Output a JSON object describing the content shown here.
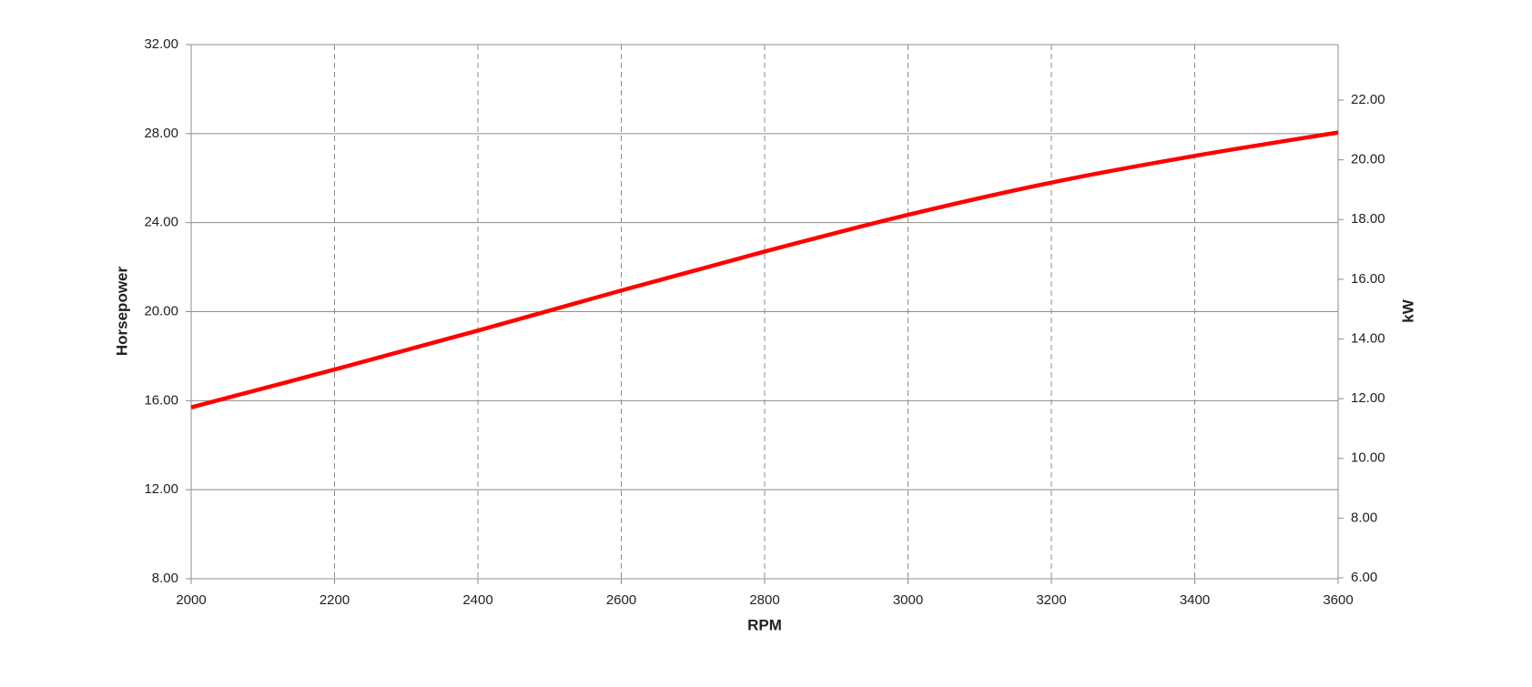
{
  "chart_data": {
    "type": "line",
    "x_label": "RPM",
    "y_label": "Horsepower",
    "y2_label": "kW",
    "x": [
      2000,
      2200,
      2400,
      2600,
      2800,
      3000,
      3200,
      3400,
      3600
    ],
    "series": [
      {
        "name": "Horsepower",
        "color": "#ff0000",
        "values": [
          15.7,
          17.4,
          19.15,
          20.95,
          22.7,
          24.35,
          25.8,
          27.0,
          28.05
        ]
      }
    ],
    "xlim": [
      2000,
      3600
    ],
    "xticks": [
      2000,
      2200,
      2400,
      2600,
      2800,
      3000,
      3200,
      3400,
      3600
    ],
    "ylim": [
      8,
      32
    ],
    "yticks": [
      {
        "value": 8,
        "label": "8.00"
      },
      {
        "value": 12,
        "label": "12.00"
      },
      {
        "value": 16,
        "label": "16.00"
      },
      {
        "value": 20,
        "label": "20.00"
      },
      {
        "value": 24,
        "label": "24.00"
      },
      {
        "value": 28,
        "label": "28.00"
      },
      {
        "value": 32,
        "label": "32.00"
      }
    ],
    "y2lim": [
      5.97,
      23.86
    ],
    "y2ticks": [
      {
        "value": 6,
        "label": "6.00"
      },
      {
        "value": 8,
        "label": "8.00"
      },
      {
        "value": 10,
        "label": "10.00"
      },
      {
        "value": 12,
        "label": "12.00"
      },
      {
        "value": 14,
        "label": "14.00"
      },
      {
        "value": 16,
        "label": "16.00"
      },
      {
        "value": 18,
        "label": "18.00"
      },
      {
        "value": 20,
        "label": "20.00"
      },
      {
        "value": 22,
        "label": "22.00"
      }
    ],
    "grid": true
  }
}
